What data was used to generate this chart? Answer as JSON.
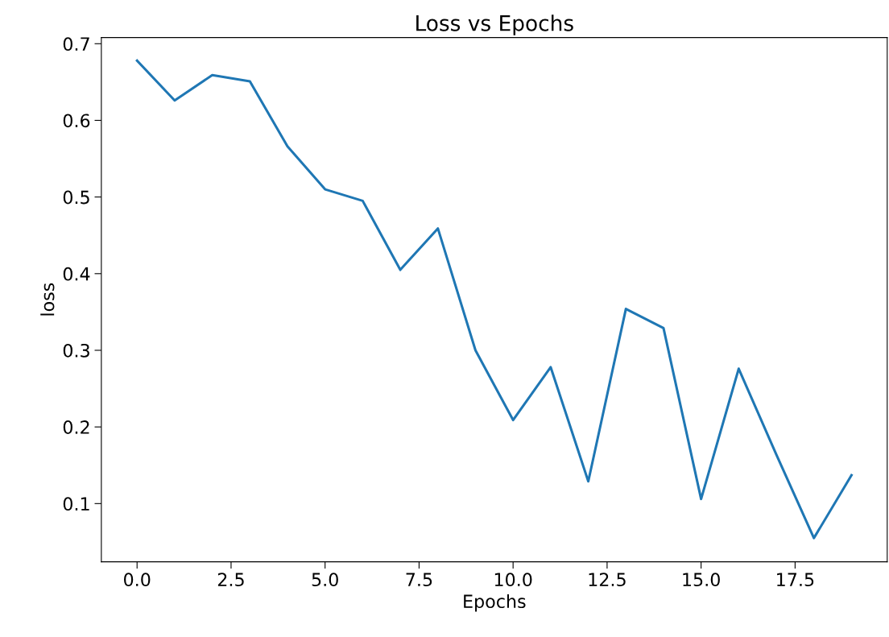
{
  "chart_data": {
    "type": "line",
    "title": "Loss vs Epochs",
    "xlabel": "Epochs",
    "ylabel": "loss",
    "x": [
      0,
      1,
      2,
      3,
      4,
      5,
      6,
      7,
      8,
      9,
      10,
      11,
      12,
      13,
      14,
      15,
      16,
      17,
      18,
      19
    ],
    "series": [
      {
        "color": "#1f77b4",
        "values": [
          0.678,
          0.626,
          0.659,
          0.651,
          0.566,
          0.51,
          0.495,
          0.405,
          0.459,
          0.3,
          0.209,
          0.278,
          0.129,
          0.354,
          0.329,
          0.106,
          0.276,
          0.164,
          0.055,
          0.137
        ]
      }
    ],
    "xlim": [
      -0.95,
      19.95
    ],
    "ylim": [
      0.024,
      0.708
    ],
    "xticks": [
      {
        "value": 0,
        "label": "0.0"
      },
      {
        "value": 2.5,
        "label": "2.5"
      },
      {
        "value": 5,
        "label": "5.0"
      },
      {
        "value": 7.5,
        "label": "7.5"
      },
      {
        "value": 10,
        "label": "10.0"
      },
      {
        "value": 12.5,
        "label": "12.5"
      },
      {
        "value": 15,
        "label": "15.0"
      },
      {
        "value": 17.5,
        "label": "17.5"
      }
    ],
    "yticks": [
      0.1,
      0.2,
      0.3,
      0.4,
      0.5,
      0.6,
      0.7
    ]
  }
}
